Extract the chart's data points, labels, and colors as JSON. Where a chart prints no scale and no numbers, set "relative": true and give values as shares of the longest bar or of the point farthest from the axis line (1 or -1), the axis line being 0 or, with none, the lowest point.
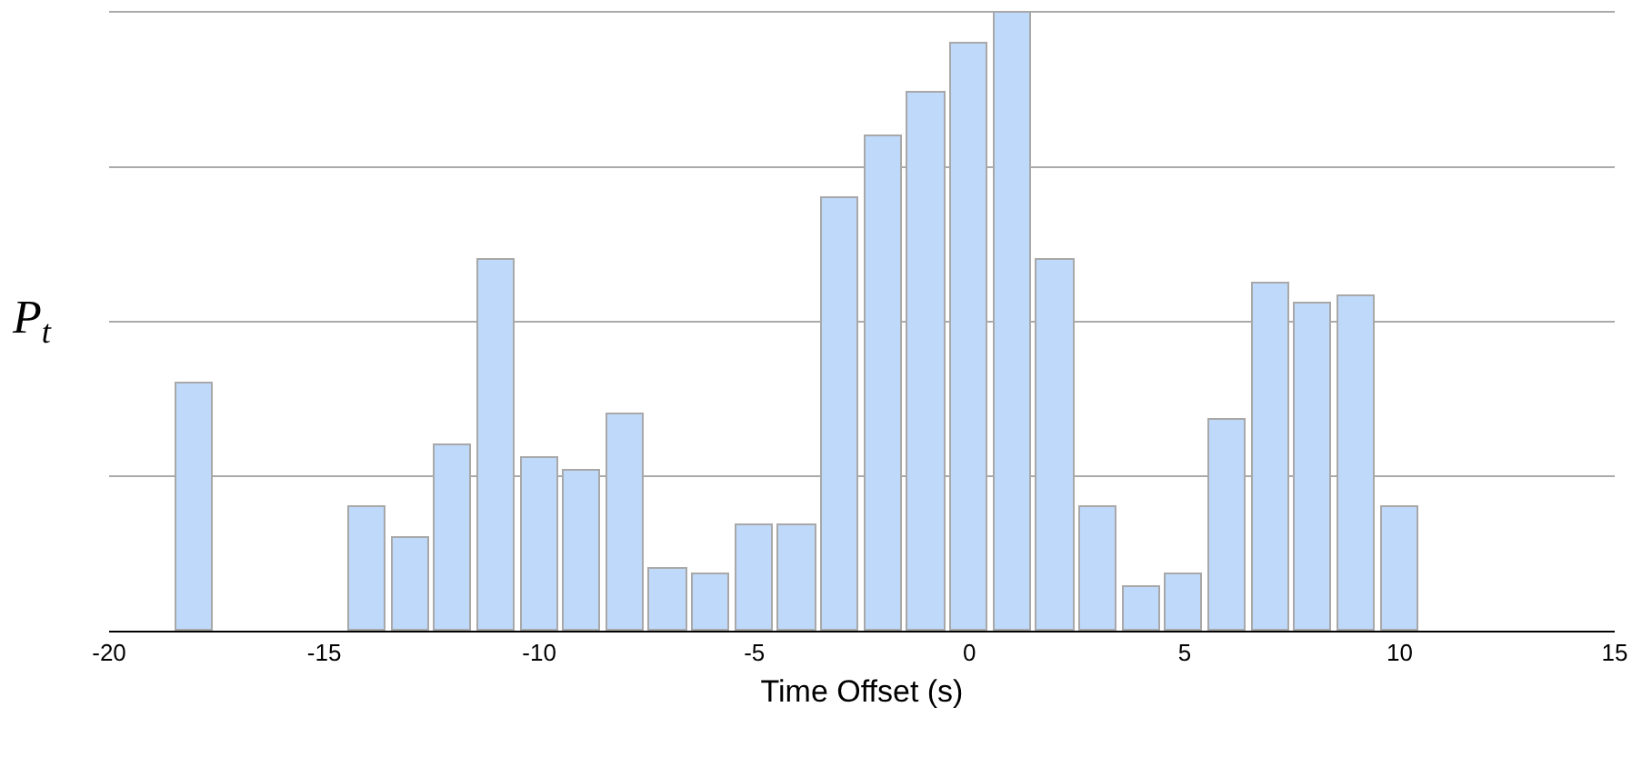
{
  "chart_data": {
    "type": "bar",
    "relative": true,
    "xlabel": "Time Offset (s)",
    "ylabel": "P$_{t}$",
    "x": [
      -18,
      -14,
      -13,
      -12,
      -11,
      -10,
      -9,
      -8,
      -7,
      -6,
      -5,
      -4,
      -3,
      -2,
      -1,
      0,
      1,
      2,
      3,
      4,
      5,
      6,
      7,
      8,
      9,
      10
    ],
    "values": [
      0.4,
      0.2,
      0.15,
      0.3,
      0.6,
      0.28,
      0.26,
      0.35,
      0.1,
      0.09,
      0.17,
      0.17,
      0.7,
      0.8,
      0.87,
      0.95,
      1.0,
      0.6,
      0.2,
      0.07,
      0.09,
      0.34,
      0.56,
      0.53,
      0.54,
      0.2
    ],
    "color": "#bfd9fb",
    "xlim": [
      -20,
      15
    ],
    "xticks": [
      -20,
      -15,
      -10,
      -5,
      0,
      5,
      10,
      15
    ],
    "grid": "y"
  }
}
